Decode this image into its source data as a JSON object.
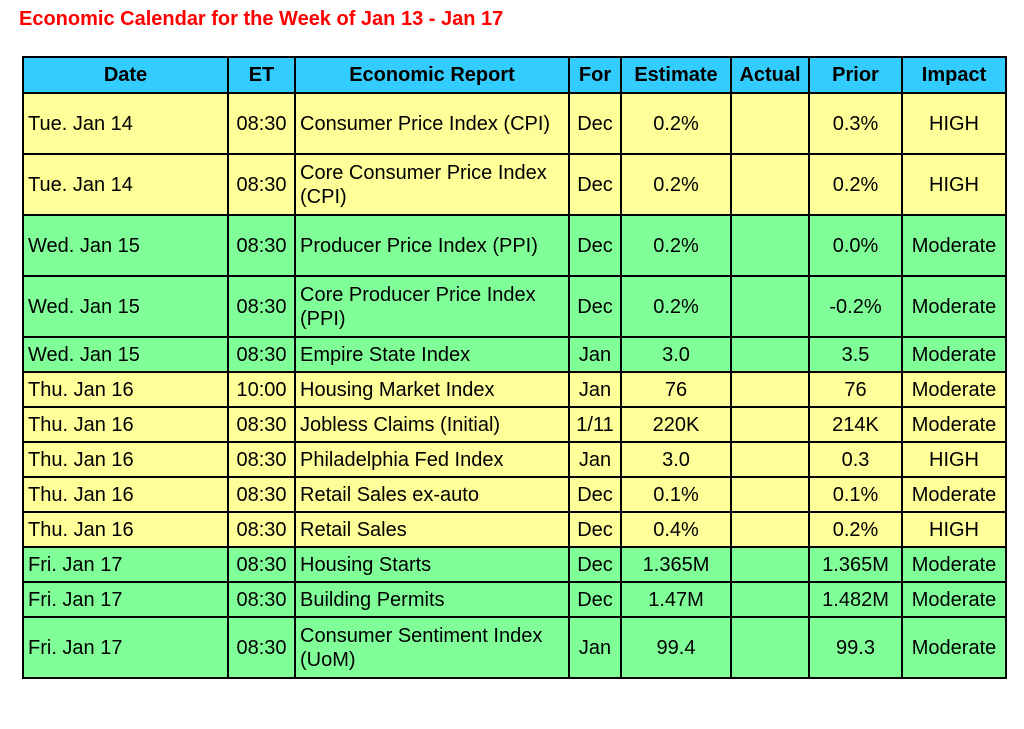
{
  "title": "Economic Calendar for the Week of Jan 13 - Jan 17",
  "colors": {
    "title": "#ff0000",
    "header_bg": "#33ccff",
    "yellow_row": "#ffff99",
    "green_row": "#80ff99"
  },
  "headers": [
    "Date",
    "ET",
    "Economic Report",
    "For",
    "Estimate",
    "Actual",
    "Prior",
    "Impact"
  ],
  "rows": [
    {
      "date": "Tue. Jan 14",
      "et": "08:30",
      "report": "Consumer Price Index (CPI)",
      "for": "Dec",
      "estimate": "0.2%",
      "actual": "",
      "prior": "0.3%",
      "impact": "HIGH",
      "color": "yellow"
    },
    {
      "date": "Tue. Jan 14",
      "et": "08:30",
      "report": "Core Consumer Price Index (CPI)",
      "for": "Dec",
      "estimate": "0.2%",
      "actual": "",
      "prior": "0.2%",
      "impact": "HIGH",
      "color": "yellow"
    },
    {
      "date": "Wed. Jan 15",
      "et": "08:30",
      "report": "Producer Price Index (PPI)",
      "for": "Dec",
      "estimate": "0.2%",
      "actual": "",
      "prior": "0.0%",
      "impact": "Moderate",
      "color": "green"
    },
    {
      "date": "Wed. Jan 15",
      "et": "08:30",
      "report": "Core Producer Price Index (PPI)",
      "for": "Dec",
      "estimate": "0.2%",
      "actual": "",
      "prior": "-0.2%",
      "impact": "Moderate",
      "color": "green"
    },
    {
      "date": "Wed. Jan 15",
      "et": "08:30",
      "report": "Empire State Index",
      "for": "Jan",
      "estimate": "3.0",
      "actual": "",
      "prior": "3.5",
      "impact": "Moderate",
      "color": "green"
    },
    {
      "date": "Thu. Jan 16",
      "et": "10:00",
      "report": "Housing Market Index",
      "for": "Jan",
      "estimate": "76",
      "actual": "",
      "prior": "76",
      "impact": "Moderate",
      "color": "yellow"
    },
    {
      "date": "Thu. Jan 16",
      "et": "08:30",
      "report": "Jobless Claims (Initial)",
      "for": "1/11",
      "estimate": "220K",
      "actual": "",
      "prior": "214K",
      "impact": "Moderate",
      "color": "yellow"
    },
    {
      "date": "Thu. Jan 16",
      "et": "08:30",
      "report": "Philadelphia Fed Index",
      "for": "Jan",
      "estimate": "3.0",
      "actual": "",
      "prior": "0.3",
      "impact": "HIGH",
      "color": "yellow"
    },
    {
      "date": "Thu. Jan 16",
      "et": "08:30",
      "report": "Retail Sales ex-auto",
      "for": "Dec",
      "estimate": "0.1%",
      "actual": "",
      "prior": "0.1%",
      "impact": "Moderate",
      "color": "yellow"
    },
    {
      "date": "Thu. Jan 16",
      "et": "08:30",
      "report": "Retail Sales",
      "for": "Dec",
      "estimate": "0.4%",
      "actual": "",
      "prior": "0.2%",
      "impact": "HIGH",
      "color": "yellow"
    },
    {
      "date": "Fri. Jan 17",
      "et": "08:30",
      "report": "Housing Starts",
      "for": "Dec",
      "estimate": "1.365M",
      "actual": "",
      "prior": "1.365M",
      "impact": "Moderate",
      "color": "green"
    },
    {
      "date": "Fri. Jan 17",
      "et": "08:30",
      "report": "Building Permits",
      "for": "Dec",
      "estimate": "1.47M",
      "actual": "",
      "prior": "1.482M",
      "impact": "Moderate",
      "color": "green"
    },
    {
      "date": "Fri. Jan 17",
      "et": "08:30",
      "report": "Consumer Sentiment Index (UoM)",
      "for": "Jan",
      "estimate": "99.4",
      "actual": "",
      "prior": "99.3",
      "impact": "Moderate",
      "color": "green"
    }
  ]
}
